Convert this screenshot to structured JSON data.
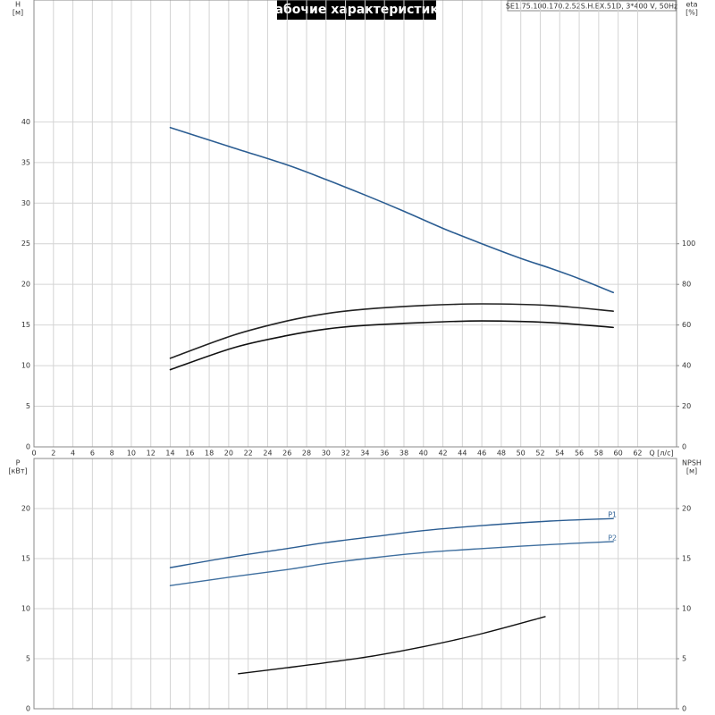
{
  "chart_data": [
    {
      "type": "line",
      "title": "Рабочие характеристики",
      "subtitle": "SE1.75.100.170.2.52S.H.EX.51D, 3*400 V, 50Hz",
      "ylabel": "H",
      "yunit": "[м]",
      "y2label": "eta",
      "y2unit": "[%]",
      "xlabel": "Q [л/с]",
      "xlim": [
        0,
        66
      ],
      "xticks": [
        0,
        2,
        4,
        6,
        8,
        10,
        12,
        14,
        16,
        18,
        20,
        22,
        24,
        26,
        28,
        30,
        32,
        34,
        36,
        38,
        40,
        42,
        44,
        46,
        48,
        50,
        52,
        54,
        56,
        58,
        60,
        62
      ],
      "ylim": [
        0,
        55
      ],
      "yticks": [
        0,
        5,
        10,
        15,
        20,
        25,
        30,
        35,
        40
      ],
      "y2lim": [
        0,
        220
      ],
      "y2ticks": [
        0,
        20,
        40,
        60,
        80,
        100
      ],
      "grid": true,
      "series": [
        {
          "color": "#2b5d92",
          "x": [
            14,
            20.5,
            26,
            30,
            34,
            38,
            42,
            46,
            50,
            53,
            56,
            59.5
          ],
          "values": [
            39.3,
            36.8,
            34.7,
            32.9,
            31.0,
            29.0,
            26.9,
            25.0,
            23.2,
            22.0,
            20.7,
            19.0
          ]
        },
        {
          "color": "#222222",
          "axis": "y2",
          "x": [
            14,
            20.5,
            26,
            30,
            34,
            40,
            46,
            53,
            59.5
          ],
          "values": [
            43.6,
            55,
            62,
            65.6,
            67.8,
            69.6,
            70.4,
            69.6,
            66.8
          ]
        },
        {
          "color": "#111111",
          "axis": "y2",
          "x": [
            14,
            20.5,
            26,
            30,
            34,
            40,
            46,
            53,
            59.5
          ],
          "values": [
            38,
            48.8,
            54.8,
            58,
            59.8,
            61.2,
            62,
            61.2,
            58.8
          ]
        }
      ]
    },
    {
      "type": "line",
      "ylabel": "P",
      "yunit": "[кВт]",
      "y2label": "NPSH",
      "y2unit": "[м]",
      "xlim": [
        0,
        66
      ],
      "xticks": [
        0,
        2,
        4,
        6,
        8,
        10,
        12,
        14,
        16,
        18,
        20,
        22,
        24,
        26,
        28,
        30,
        32,
        34,
        36,
        38,
        40,
        42,
        44,
        46,
        48,
        50,
        52,
        54,
        56,
        58,
        60,
        62
      ],
      "ylim": [
        0,
        25
      ],
      "yticks": [
        0,
        5,
        10,
        15,
        20
      ],
      "y2lim": [
        0,
        25
      ],
      "y2ticks": [
        0,
        5,
        10,
        15,
        20
      ],
      "grid": true,
      "series": [
        {
          "name": "P1",
          "color": "#2b5d92",
          "x": [
            14,
            20.5,
            26,
            30,
            35,
            40,
            46,
            53,
            59.5
          ],
          "values": [
            14.1,
            15.2,
            16.0,
            16.6,
            17.2,
            17.8,
            18.3,
            18.75,
            19.0
          ]
        },
        {
          "name": "P2",
          "color": "#3f6f9f",
          "x": [
            14,
            20.5,
            26,
            30,
            35,
            40,
            46,
            53,
            59.5
          ],
          "values": [
            12.3,
            13.2,
            13.9,
            14.5,
            15.1,
            15.6,
            16.0,
            16.4,
            16.7
          ]
        },
        {
          "color": "#111111",
          "axis": "y2",
          "x": [
            21,
            26,
            30,
            35,
            40,
            46,
            52.5
          ],
          "values": [
            3.5,
            4.1,
            4.6,
            5.3,
            6.2,
            7.5,
            9.2
          ]
        }
      ]
    }
  ]
}
